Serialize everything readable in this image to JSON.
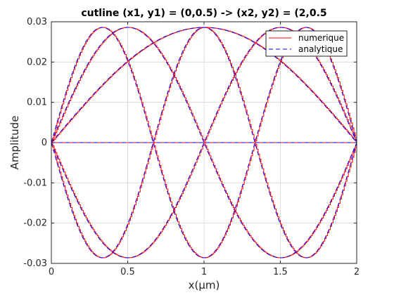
{
  "chart_data": {
    "type": "line",
    "title": "cutline (x1, y1) = (0,0.5) -> (x2, y2) = (2,0.5",
    "xlabel": "x(µm)",
    "ylabel": "Amplitude",
    "xlim": [
      0,
      2
    ],
    "ylim": [
      -0.03,
      0.03
    ],
    "x_ticks": [
      0,
      0.5,
      1,
      1.5,
      2
    ],
    "x_tick_labels": [
      "0",
      "0.5",
      "1",
      "1.5",
      "2"
    ],
    "y_ticks": [
      -0.03,
      -0.02,
      -0.01,
      0,
      0.01,
      0.02,
      0.03
    ],
    "y_tick_labels": [
      "-0.03",
      "-0.02",
      "-0.01",
      "0",
      "0.01",
      "0.02",
      "0.03"
    ],
    "grid": true,
    "legend_position": "top-right",
    "legend": [
      {
        "name": "numerique",
        "color": "#ff0000",
        "style": "solid"
      },
      {
        "name": "analytique",
        "color": "#0000ff",
        "style": "dashed"
      }
    ],
    "amplitude": 0.0286,
    "x_length": 2,
    "modes": [
      {
        "n": 1,
        "sign": 1
      },
      {
        "n": 2,
        "sign": 1
      },
      {
        "n": 2,
        "sign": -1
      },
      {
        "n": 3,
        "sign": 1
      },
      {
        "n": 3,
        "sign": -1
      }
    ],
    "zero_line": true
  }
}
